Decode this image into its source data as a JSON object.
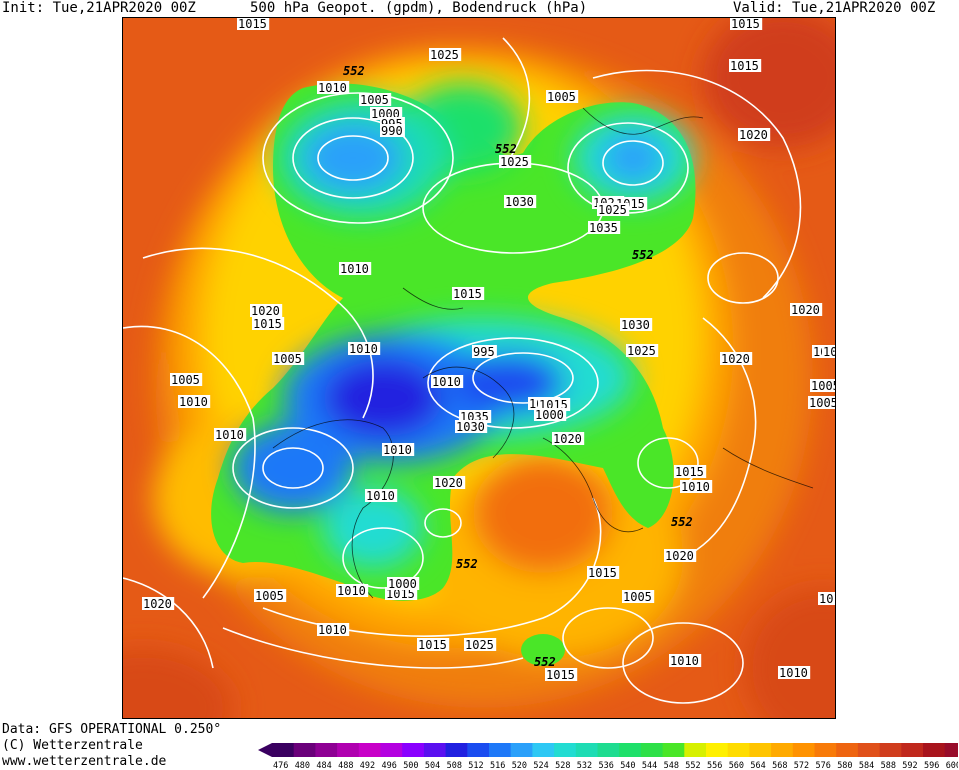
{
  "header": {
    "init": "Init: Tue,21APR2020 00Z",
    "title": "500 hPa Geopot. (gpdm), Bodendruck (hPa)",
    "valid": "Valid: Tue,21APR2020 00Z"
  },
  "footer": {
    "data_source": "Data: GFS OPERATIONAL 0.250°",
    "copyright": "(C) Wetterzentrale",
    "url": "www.wetterzentrale.de"
  },
  "legend": {
    "ticks": [
      "476",
      "480",
      "484",
      "488",
      "492",
      "496",
      "500",
      "504",
      "508",
      "512",
      "516",
      "520",
      "524",
      "528",
      "532",
      "536",
      "540",
      "544",
      "548",
      "552",
      "556",
      "560",
      "564",
      "568",
      "572",
      "576",
      "580",
      "584",
      "588",
      "592",
      "596",
      "600"
    ],
    "colors": [
      "#3a0060",
      "#6a007a",
      "#8e0094",
      "#b000b0",
      "#c800c8",
      "#b400e0",
      "#8a00ff",
      "#5a10f0",
      "#2020e0",
      "#1a4cf0",
      "#1e78f8",
      "#2aa0fa",
      "#2ec8f4",
      "#22dcd2",
      "#1edcb4",
      "#1edc90",
      "#1ee06a",
      "#2ee048",
      "#4ae628",
      "#d6f000",
      "#fff000",
      "#ffdc00",
      "#ffc400",
      "#ffaa00",
      "#ff9200",
      "#f87a08",
      "#ee6410",
      "#e0501a",
      "#d03c1c",
      "#c0281c",
      "#a8141c",
      "#980c2a"
    ],
    "arrow_color": "#d8007a"
  },
  "map": {
    "isobar_labels": [
      "1015",
      "1025",
      "1015",
      "1010",
      "1005",
      "1000",
      "995",
      "990",
      "1025",
      "1005",
      "1015",
      "1020",
      "1020",
      "1015",
      "1025",
      "1030",
      "1035",
      "1010",
      "1015",
      "1020",
      "1015",
      "1030",
      "1025",
      "1010",
      "1005",
      "995",
      "1005",
      "1015",
      "1000",
      "1010",
      "1035",
      "1030",
      "1020",
      "1020",
      "1010",
      "1005",
      "1010",
      "1010",
      "1020",
      "1005",
      "1005",
      "1010",
      "1015",
      "1010",
      "1020",
      "1010",
      "1015",
      "1010",
      "1000",
      "1005",
      "1010",
      "1020",
      "1015",
      "1005",
      "1020",
      "1015",
      "1025",
      "1015",
      "1010",
      "1010",
      "1015",
      "10",
      "10"
    ],
    "geopot_labels": [
      "552",
      "552",
      "552",
      "552",
      "552",
      "552"
    ]
  }
}
